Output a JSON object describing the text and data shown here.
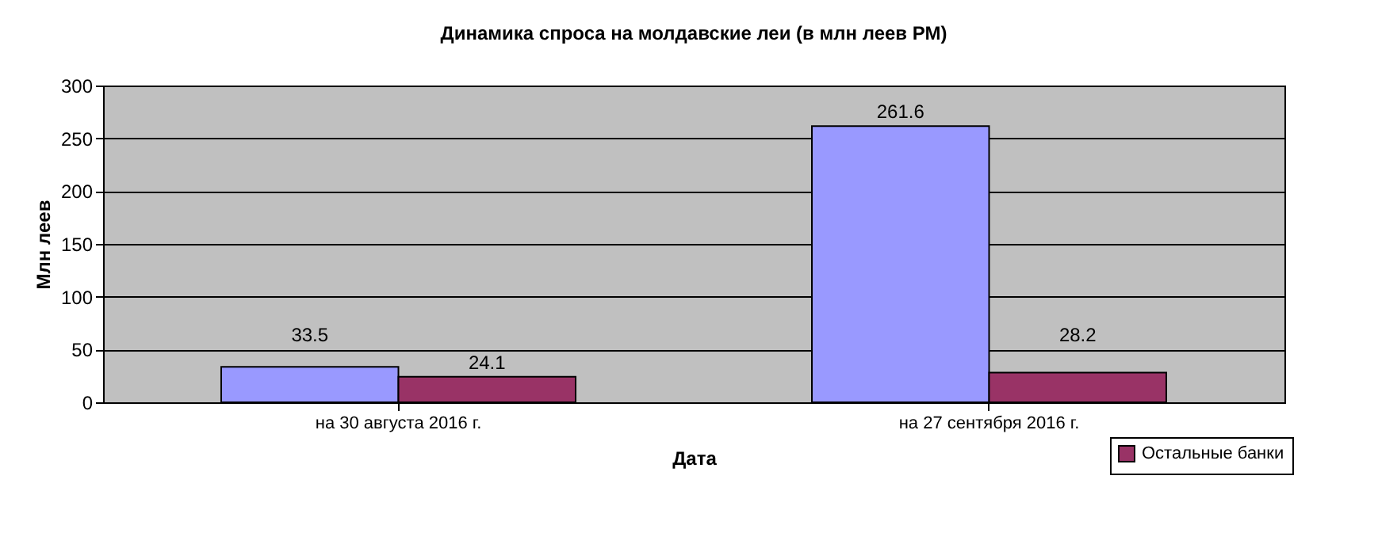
{
  "chart_data": {
    "type": "bar",
    "title": "Динамика спроса на молдавские леи (в млн леев РМ)",
    "xlabel": "Дата",
    "ylabel": "Млн леев",
    "categories": [
      "на 30 августа 2016 г.",
      "на 27 сентября 2016 г."
    ],
    "series": [
      {
        "color": "#9999ff",
        "values": [
          33.5,
          261.6
        ]
      },
      {
        "name": "Остальные банки",
        "color": "#993366",
        "values": [
          24.1,
          28.2
        ]
      }
    ],
    "ylim": [
      0,
      300
    ],
    "yticks": [
      0,
      50,
      100,
      150,
      200,
      250,
      300
    ],
    "grid": "y",
    "legend": "bottom right",
    "data_labels": true
  }
}
